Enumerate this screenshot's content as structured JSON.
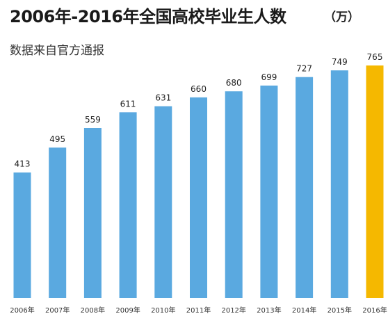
{
  "title": "2006年-2016年全国高校毕业生人数",
  "unit": "（万）",
  "subtitle": "数据来自官方通报",
  "colors": {
    "normal": "#5aa9e0",
    "highlight": "#f5b800"
  },
  "chart_data": {
    "type": "bar",
    "categories": [
      "2006年",
      "2007年",
      "2008年",
      "2009年",
      "2010年",
      "2011年",
      "2012年",
      "2013年",
      "2014年",
      "2015年",
      "2016年"
    ],
    "values": [
      413,
      495,
      559,
      611,
      631,
      660,
      680,
      699,
      727,
      749,
      765
    ],
    "highlight_index": 10,
    "ylim": [
      0,
      800
    ],
    "grid": false,
    "data_labels": true
  }
}
